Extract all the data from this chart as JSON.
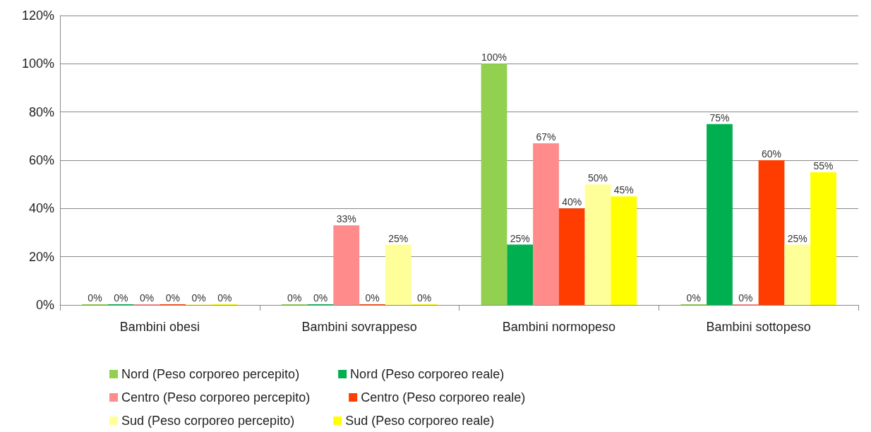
{
  "chart_data": {
    "type": "bar",
    "categories": [
      "Bambini obesi",
      "Bambini sovrappeso",
      "Bambini normopeso",
      "Bambini sottopeso"
    ],
    "series": [
      {
        "name": "Nord (Peso corporeo percepito)",
        "color": "#92d050",
        "values": [
          0,
          0,
          100,
          0
        ],
        "value_labels": [
          "0%",
          "0%",
          "100%",
          "0%"
        ]
      },
      {
        "name": "Nord (Peso corporeo reale)",
        "color": "#00b050",
        "values": [
          0,
          0,
          25,
          75
        ],
        "value_labels": [
          "0%",
          "0%",
          "25%",
          "75%"
        ]
      },
      {
        "name": "Centro (Peso corporeo percepito)",
        "color": "#ff8b8b",
        "values": [
          0,
          33,
          67,
          0
        ],
        "value_labels": [
          "0%",
          "33%",
          "67%",
          "0%"
        ]
      },
      {
        "name": "Centro (Peso corporeo reale)",
        "color": "#ff3d00",
        "values": [
          0,
          0,
          40,
          60
        ],
        "value_labels": [
          "0%",
          "0%",
          "40%",
          "60%"
        ]
      },
      {
        "name": "Sud (Peso corporeo percepito)",
        "color": "#ffff99",
        "values": [
          0,
          25,
          50,
          25
        ],
        "value_labels": [
          "0%",
          "25%",
          "50%",
          "25%"
        ]
      },
      {
        "name": "Sud (Peso corporeo reale)",
        "color": "#ffff00",
        "values": [
          0,
          0,
          45,
          55
        ],
        "value_labels": [
          "0%",
          "0%",
          "45%",
          "55%"
        ]
      }
    ],
    "ylim": [
      0,
      120
    ],
    "yticks": [
      {
        "value": 0,
        "label": "0%"
      },
      {
        "value": 20,
        "label": "20%"
      },
      {
        "value": 40,
        "label": "40%"
      },
      {
        "value": 60,
        "label": "60%"
      },
      {
        "value": 80,
        "label": "80%"
      },
      {
        "value": 100,
        "label": "100%"
      },
      {
        "value": 120,
        "label": "120%"
      }
    ],
    "grid": "y",
    "legend": "bottom"
  }
}
